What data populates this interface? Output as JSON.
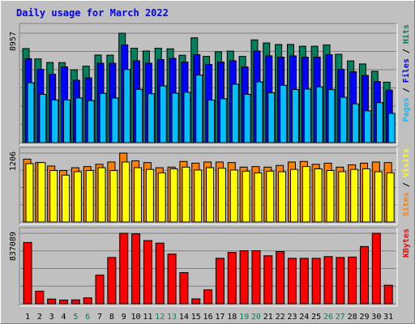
{
  "title": "Daily usage for March 2022",
  "colors": {
    "background": "#c0c0c0",
    "hits": "#00805c",
    "files": "#0000ff",
    "pages": "#00c0ff",
    "visits": "#ffff00",
    "sites": "#ff8000",
    "kbytes": "#ff0000",
    "weekend_label": "#00805c",
    "weekday_label": "#000000"
  },
  "chart_data": [
    {
      "type": "bar",
      "title": "Daily usage for March 2022",
      "categories": [
        "1",
        "2",
        "3",
        "4",
        "5",
        "6",
        "7",
        "8",
        "9",
        "10",
        "11",
        "12",
        "13",
        "14",
        "15",
        "16",
        "17",
        "18",
        "19",
        "20",
        "21",
        "22",
        "23",
        "24",
        "25",
        "26",
        "27",
        "28",
        "29",
        "30",
        "31"
      ],
      "weekend_days": [
        "5",
        "6",
        "12",
        "13",
        "19",
        "20",
        "26",
        "27"
      ],
      "y_tick_label": "8957",
      "ylim": [
        0,
        8957
      ],
      "legend": [
        {
          "label": "Pages",
          "color": "#00c0ff"
        },
        {
          "label": "Files",
          "color": "#0000ff"
        },
        {
          "label": "Hits",
          "color": "#00805c"
        }
      ],
      "legend_separator": " / ",
      "series": [
        {
          "name": "Hits",
          "values": [
            7700,
            6850,
            6560,
            6550,
            5960,
            6260,
            7170,
            7160,
            8957,
            7730,
            7500,
            7730,
            7680,
            7150,
            8580,
            7060,
            7440,
            7490,
            7060,
            8410,
            8160,
            8030,
            8040,
            7890,
            7890,
            8000,
            7230,
            6690,
            6440,
            5840,
            4950
          ]
        },
        {
          "name": "Files",
          "values": [
            6870,
            6000,
            5600,
            6200,
            5100,
            5300,
            6500,
            6500,
            8000,
            6700,
            6500,
            6800,
            6900,
            6600,
            7200,
            6400,
            6600,
            6700,
            6200,
            7500,
            7100,
            7000,
            7100,
            7000,
            7000,
            7200,
            6000,
            5800,
            5500,
            5000,
            4300
          ]
        },
        {
          "name": "Pages",
          "values": [
            4900,
            3950,
            3490,
            3490,
            3660,
            3440,
            4030,
            3650,
            5990,
            4360,
            4000,
            4640,
            4050,
            4120,
            5530,
            3480,
            3590,
            4780,
            3950,
            4970,
            4080,
            4690,
            4340,
            4380,
            4560,
            4340,
            3710,
            3170,
            2600,
            3270,
            2390
          ]
        }
      ]
    },
    {
      "type": "bar",
      "categories": [
        "1",
        "2",
        "3",
        "4",
        "5",
        "6",
        "7",
        "8",
        "9",
        "10",
        "11",
        "12",
        "13",
        "14",
        "15",
        "16",
        "17",
        "18",
        "19",
        "20",
        "21",
        "22",
        "23",
        "24",
        "25",
        "26",
        "27",
        "28",
        "29",
        "30",
        "31"
      ],
      "y_tick_label": "1206",
      "ylim": [
        0,
        1206
      ],
      "legend": [
        {
          "label": "Sites",
          "color": "#ff8000"
        },
        {
          "label": "Visits",
          "color": "#ffff00"
        }
      ],
      "legend_separator": " / ",
      "series": [
        {
          "name": "Visits",
          "values": [
            1020,
            1040,
            900,
            820,
            880,
            900,
            950,
            900,
            1050,
            950,
            920,
            860,
            930,
            960,
            910,
            950,
            940,
            910,
            890,
            860,
            890,
            880,
            920,
            970,
            930,
            900,
            880,
            920,
            930,
            880,
            860
          ]
        },
        {
          "name": "Sites",
          "values": [
            1100,
            1040,
            980,
            900,
            950,
            970,
            1010,
            1050,
            1206,
            1070,
            1040,
            950,
            960,
            1060,
            1030,
            1050,
            1050,
            1040,
            960,
            970,
            960,
            990,
            1050,
            1060,
            1010,
            1030,
            960,
            1000,
            1030,
            1050,
            1040
          ]
        }
      ]
    },
    {
      "type": "bar",
      "categories": [
        "1",
        "2",
        "3",
        "4",
        "5",
        "6",
        "7",
        "8",
        "9",
        "10",
        "11",
        "12",
        "13",
        "14",
        "15",
        "16",
        "17",
        "18",
        "19",
        "20",
        "21",
        "22",
        "23",
        "24",
        "25",
        "26",
        "27",
        "28",
        "29",
        "30",
        "31"
      ],
      "y_tick_label": "837089",
      "ylim": [
        0,
        837089
      ],
      "legend": [
        {
          "label": "KBytes",
          "color": "#ff0000"
        }
      ],
      "series": [
        {
          "name": "KBytes",
          "values": [
            728000,
            150000,
            56000,
            44000,
            46000,
            70000,
            340000,
            550000,
            837089,
            830000,
            750000,
            720000,
            590000,
            370000,
            58000,
            165000,
            540000,
            610000,
            630000,
            630000,
            570000,
            620000,
            540000,
            540000,
            540000,
            560000,
            550000,
            555000,
            680000,
            837089,
            220000
          ]
        }
      ]
    }
  ]
}
